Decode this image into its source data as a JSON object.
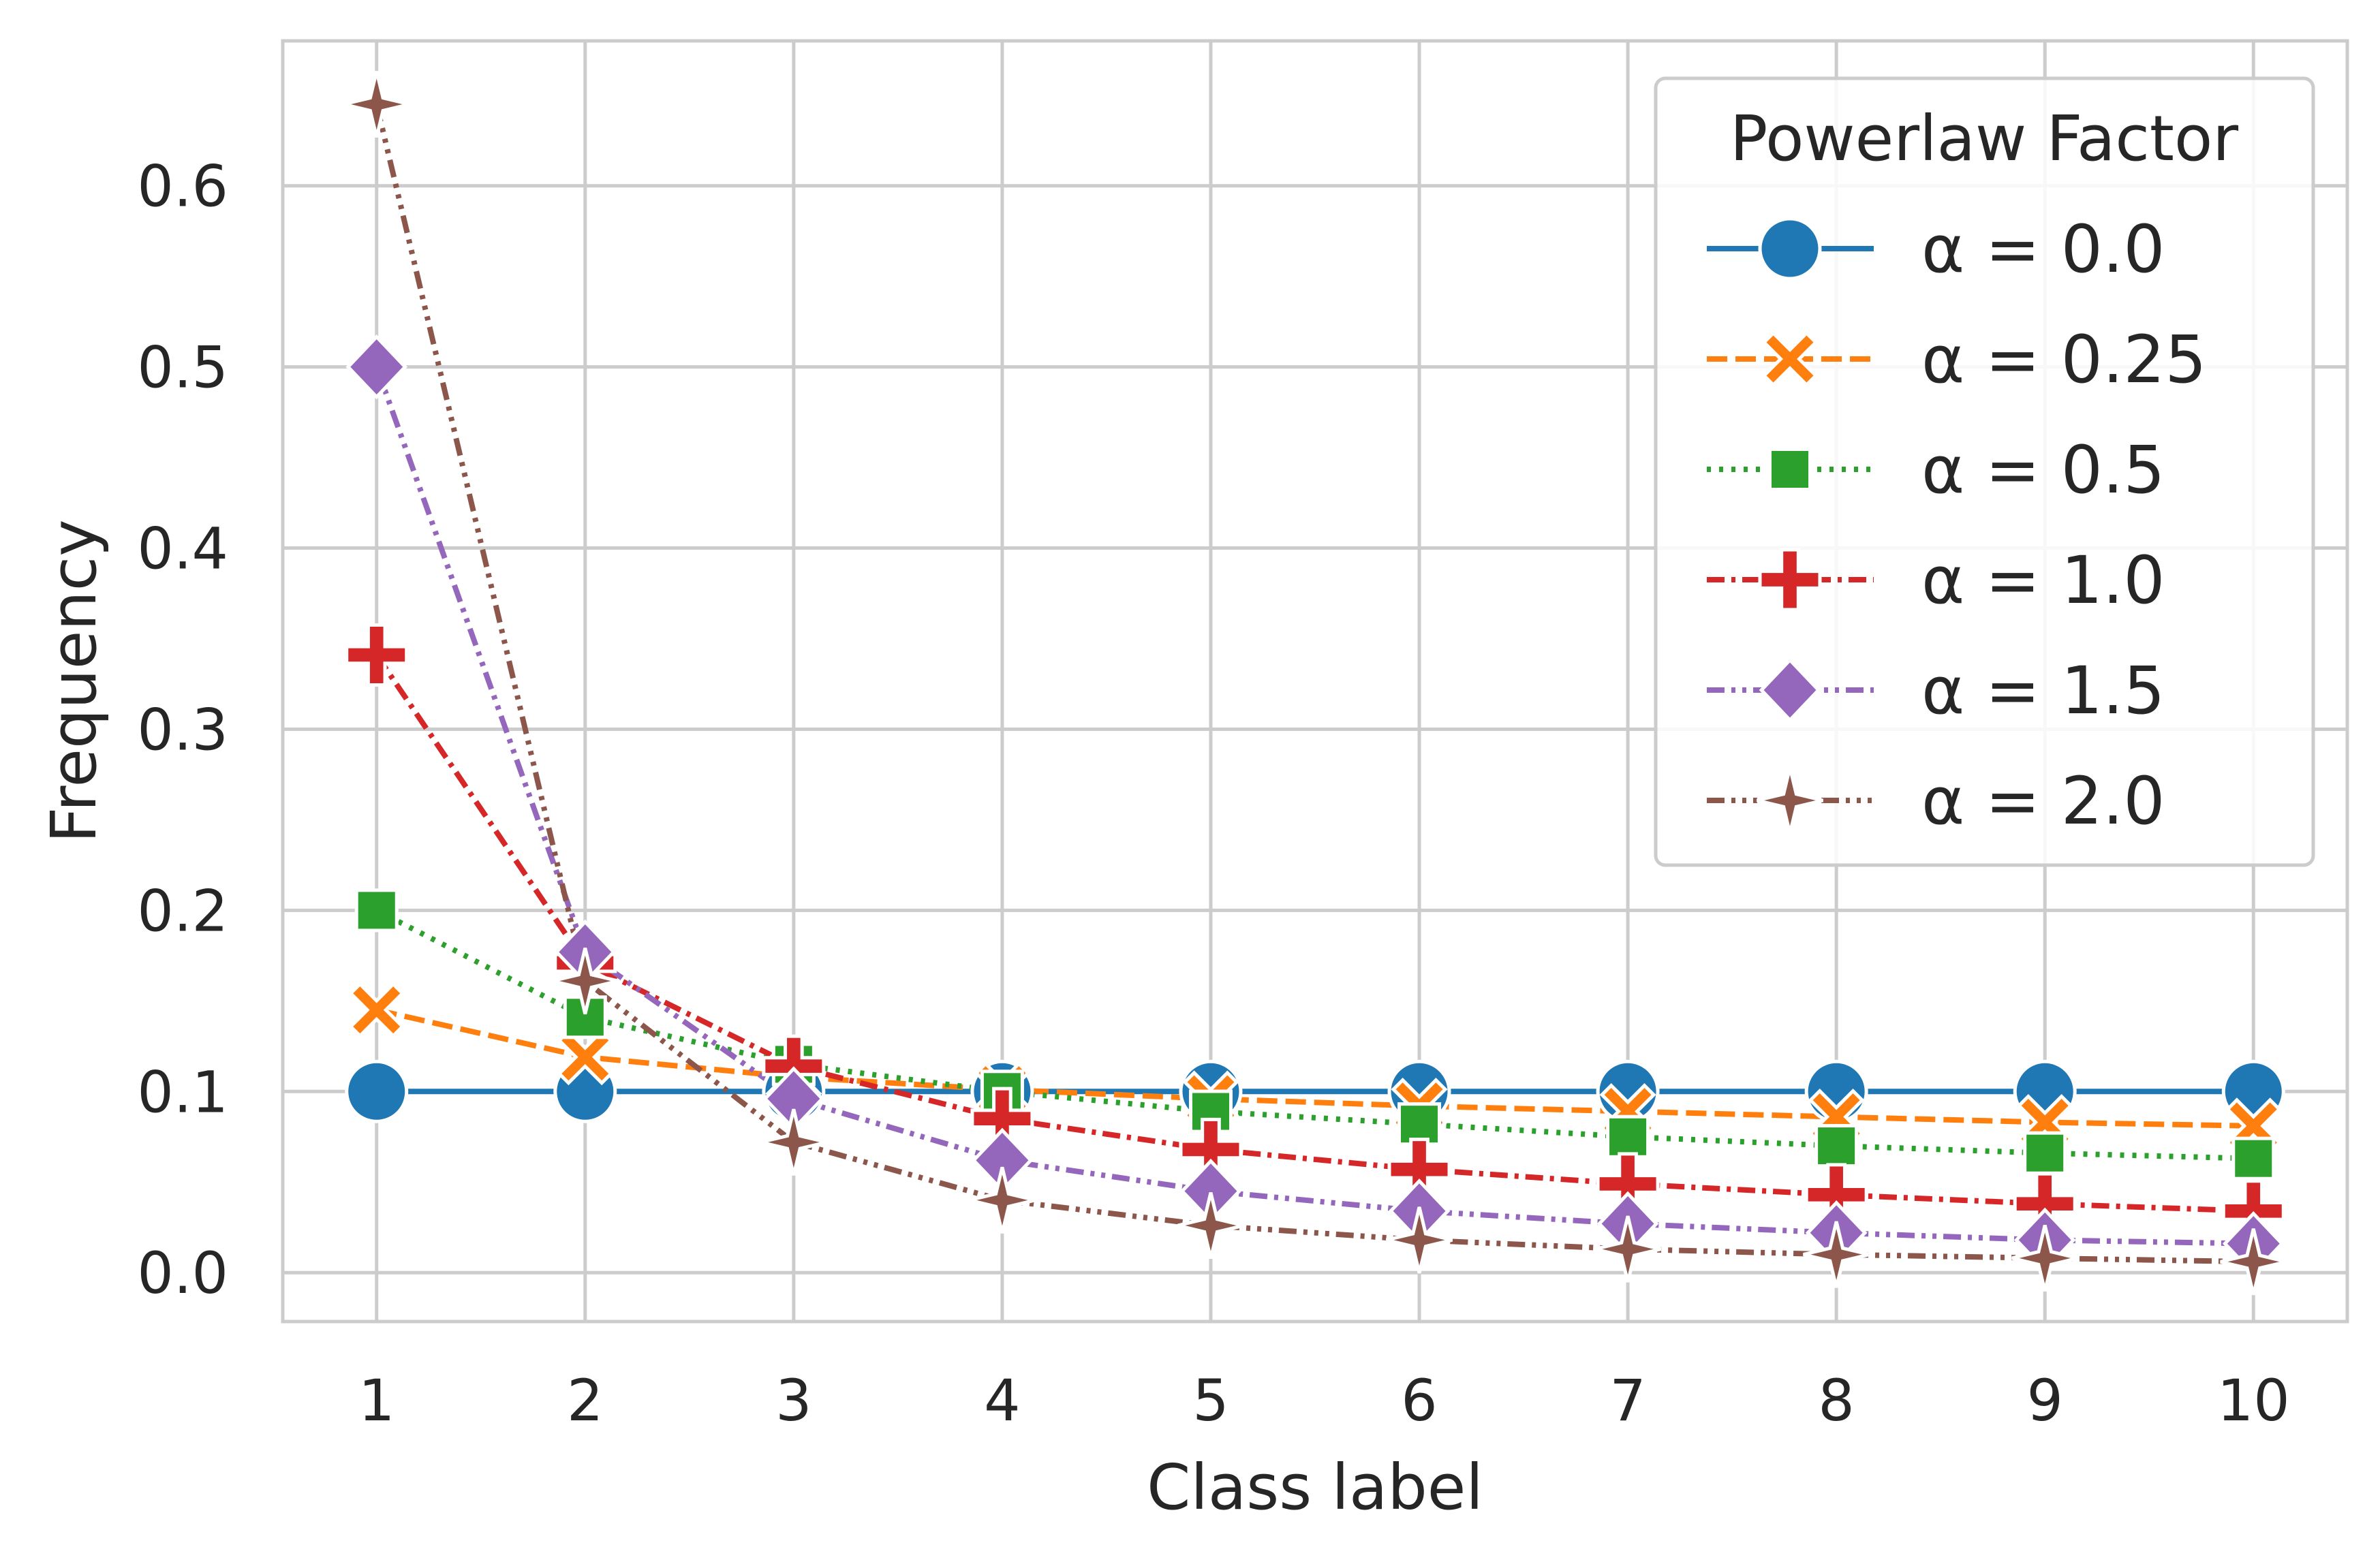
{
  "chart_data": {
    "type": "line",
    "title": "",
    "xlabel": "Class label",
    "ylabel": "Frequency",
    "x": [
      1,
      2,
      3,
      4,
      5,
      6,
      7,
      8,
      9,
      10
    ],
    "xlim": [
      0.55,
      10.45
    ],
    "ylim": [
      -0.027,
      0.68
    ],
    "yticks": [
      0.0,
      0.1,
      0.2,
      0.3,
      0.4,
      0.5,
      0.6
    ],
    "ytick_labels": [
      "0.0",
      "0.1",
      "0.2",
      "0.3",
      "0.4",
      "0.5",
      "0.6"
    ],
    "xtick_labels": [
      "1",
      "2",
      "3",
      "4",
      "5",
      "6",
      "7",
      "8",
      "9",
      "10"
    ],
    "grid": true,
    "legend": {
      "title": "Powerlaw Factor",
      "position": "top-right"
    },
    "series": [
      {
        "name": "α = 0.0",
        "color": "#1f77b4",
        "marker": "circle",
        "dash": "solid",
        "values": [
          0.1,
          0.1,
          0.1,
          0.1,
          0.1,
          0.1,
          0.1,
          0.1,
          0.1,
          0.1
        ]
      },
      {
        "name": "α = 0.25",
        "color": "#ff7f0e",
        "marker": "x",
        "dash": "dashed",
        "values": [
          0.145,
          0.119,
          0.108,
          0.101,
          0.096,
          0.092,
          0.089,
          0.086,
          0.083,
          0.081
        ]
      },
      {
        "name": "α = 0.5",
        "color": "#2ca02c",
        "marker": "square",
        "dash": "dotted",
        "values": [
          0.2,
          0.141,
          0.115,
          0.1,
          0.089,
          0.082,
          0.075,
          0.07,
          0.066,
          0.063
        ]
      },
      {
        "name": "α = 1.0",
        "color": "#d62728",
        "marker": "plus",
        "dash": "dashdot",
        "values": [
          0.341,
          0.171,
          0.114,
          0.085,
          0.068,
          0.057,
          0.049,
          0.043,
          0.038,
          0.034
        ]
      },
      {
        "name": "α = 1.5",
        "color": "#9467bd",
        "marker": "diamond",
        "dash": "dashdotdot",
        "values": [
          0.5,
          0.177,
          0.096,
          0.062,
          0.045,
          0.034,
          0.027,
          0.022,
          0.018,
          0.016
        ]
      },
      {
        "name": "α = 2.0",
        "color": "#8c564b",
        "marker": "star",
        "dash": "dashdotdotdot",
        "values": [
          0.645,
          0.161,
          0.072,
          0.04,
          0.026,
          0.018,
          0.013,
          0.01,
          0.008,
          0.006
        ]
      }
    ]
  }
}
